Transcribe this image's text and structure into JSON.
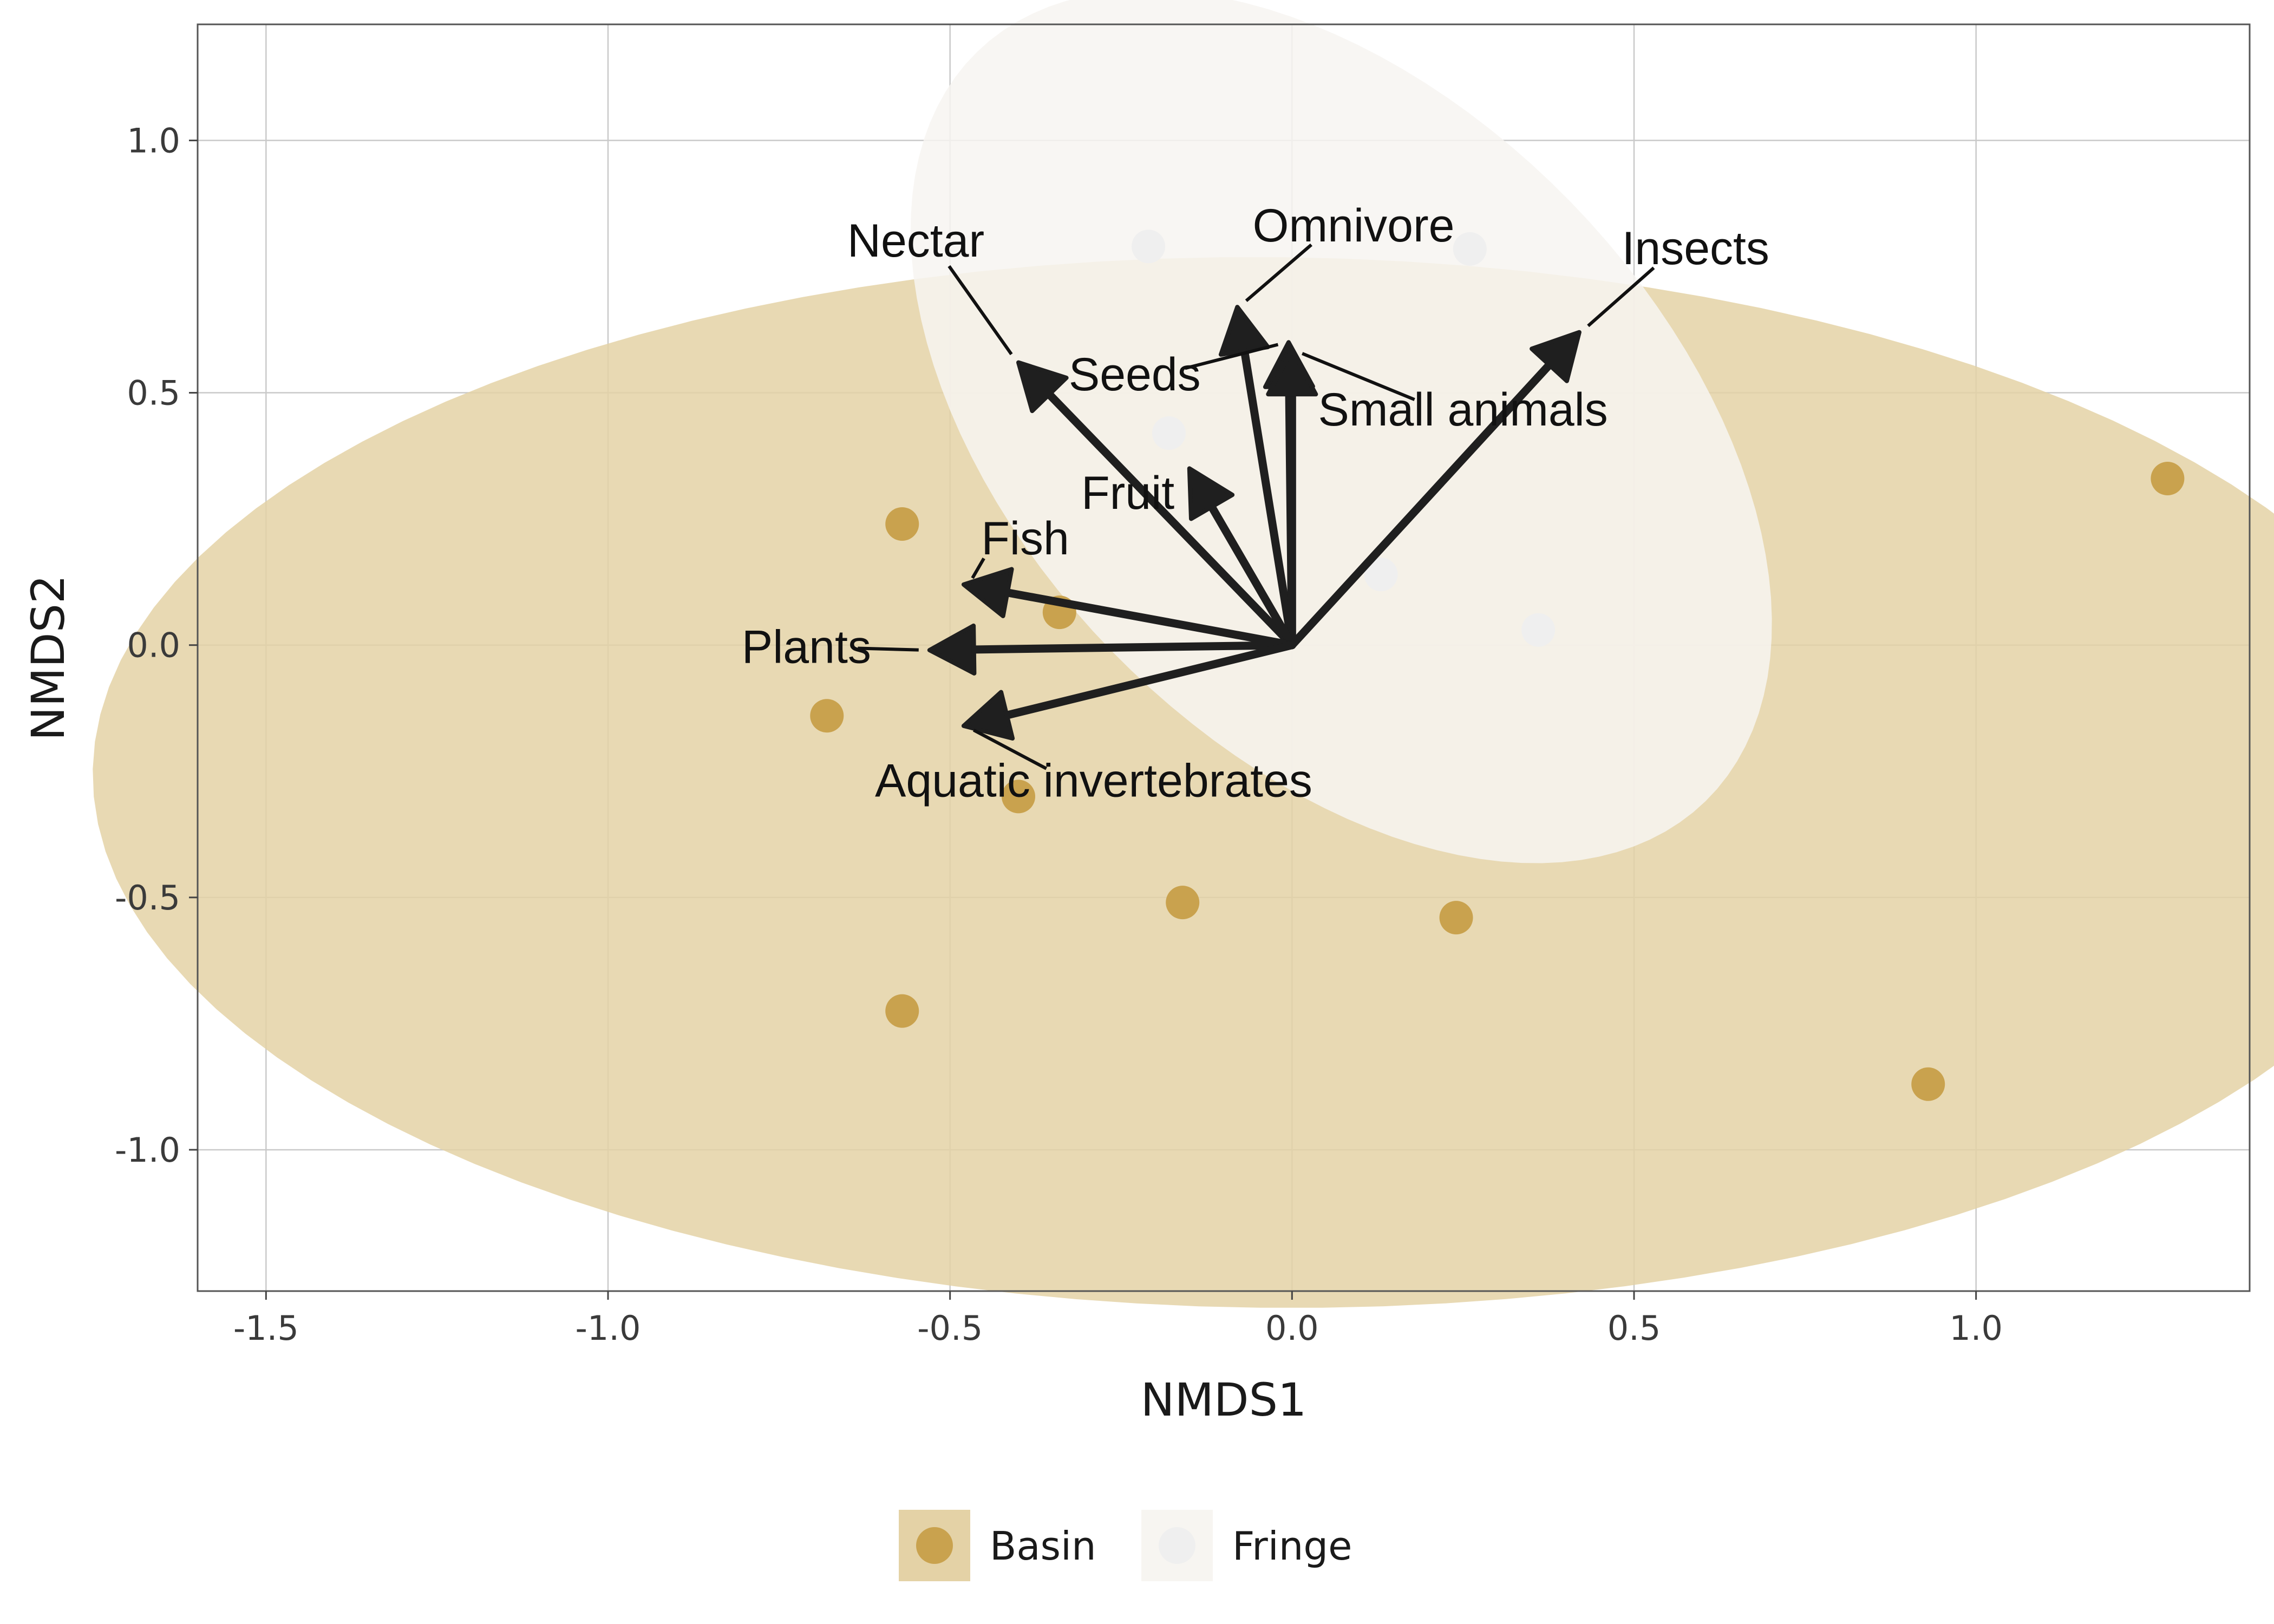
{
  "chart_data": {
    "type": "scatter",
    "title": "",
    "xlabel": "NMDS1",
    "ylabel": "NMDS2",
    "xlim": [
      -1.6,
      1.4
    ],
    "ylim": [
      -1.28,
      1.23
    ],
    "xticks": [
      -1.5,
      -1.0,
      -0.5,
      0.0,
      0.5,
      1.0
    ],
    "xtick_labels": [
      "-1.5",
      "-1.0",
      "-0.5",
      "0.0",
      "0.5",
      "1.0"
    ],
    "yticks": [
      -1.0,
      -0.5,
      0.0,
      0.5,
      1.0
    ],
    "ytick_labels": [
      "-1.0",
      "-0.5",
      "0.0",
      "0.5",
      "1.0"
    ],
    "grid": true,
    "legend_position": "bottom",
    "series": [
      {
        "name": "Basin",
        "color": "#c9a24e",
        "ellipse_color": "#e4d2a6",
        "points": [
          {
            "x": -0.57,
            "y": 0.24
          },
          {
            "x": -0.34,
            "y": 0.065
          },
          {
            "x": -0.68,
            "y": -0.14
          },
          {
            "x": -0.4,
            "y": -0.3
          },
          {
            "x": -0.16,
            "y": -0.51
          },
          {
            "x": 0.24,
            "y": -0.54
          },
          {
            "x": -0.57,
            "y": -0.725
          },
          {
            "x": 0.93,
            "y": -0.87
          },
          {
            "x": 1.28,
            "y": 0.33
          }
        ]
      },
      {
        "name": "Fringe",
        "color": "#efefef",
        "ellipse_color": "#f7f5f1",
        "points": [
          {
            "x": -0.21,
            "y": 0.79
          },
          {
            "x": 0.26,
            "y": 0.785
          },
          {
            "x": -0.18,
            "y": 0.42
          },
          {
            "x": 0.13,
            "y": 0.14
          },
          {
            "x": 0.36,
            "y": 0.03
          }
        ]
      }
    ],
    "vectors": [
      {
        "label": "Nectar",
        "x": -0.4,
        "y": 0.56,
        "label_x": -0.55,
        "label_y": 0.77
      },
      {
        "label": "Omnivore",
        "x": -0.08,
        "y": 0.67,
        "label_x": 0.09,
        "label_y": 0.8
      },
      {
        "label": "Insects",
        "x": 0.42,
        "y": 0.62,
        "label_x": 0.59,
        "label_y": 0.755
      },
      {
        "label": "Seeds",
        "x": -0.005,
        "y": 0.6,
        "label_x": -0.23,
        "label_y": 0.505
      },
      {
        "label": "Small animals",
        "x": 0.0,
        "y": 0.585,
        "label_x": 0.25,
        "label_y": 0.435
      },
      {
        "label": "Fruit",
        "x": -0.15,
        "y": 0.35,
        "label_x": -0.24,
        "label_y": 0.27
      },
      {
        "label": "Fish",
        "x": -0.48,
        "y": 0.12,
        "label_x": -0.39,
        "label_y": 0.18
      },
      {
        "label": "Plants",
        "x": -0.53,
        "y": -0.01,
        "label_x": -0.71,
        "label_y": -0.035
      },
      {
        "label": "Aquatic invertebrates",
        "x": -0.48,
        "y": -0.16,
        "label_x": -0.29,
        "label_y": -0.3
      }
    ],
    "vector_color": "#1f1f1f"
  }
}
